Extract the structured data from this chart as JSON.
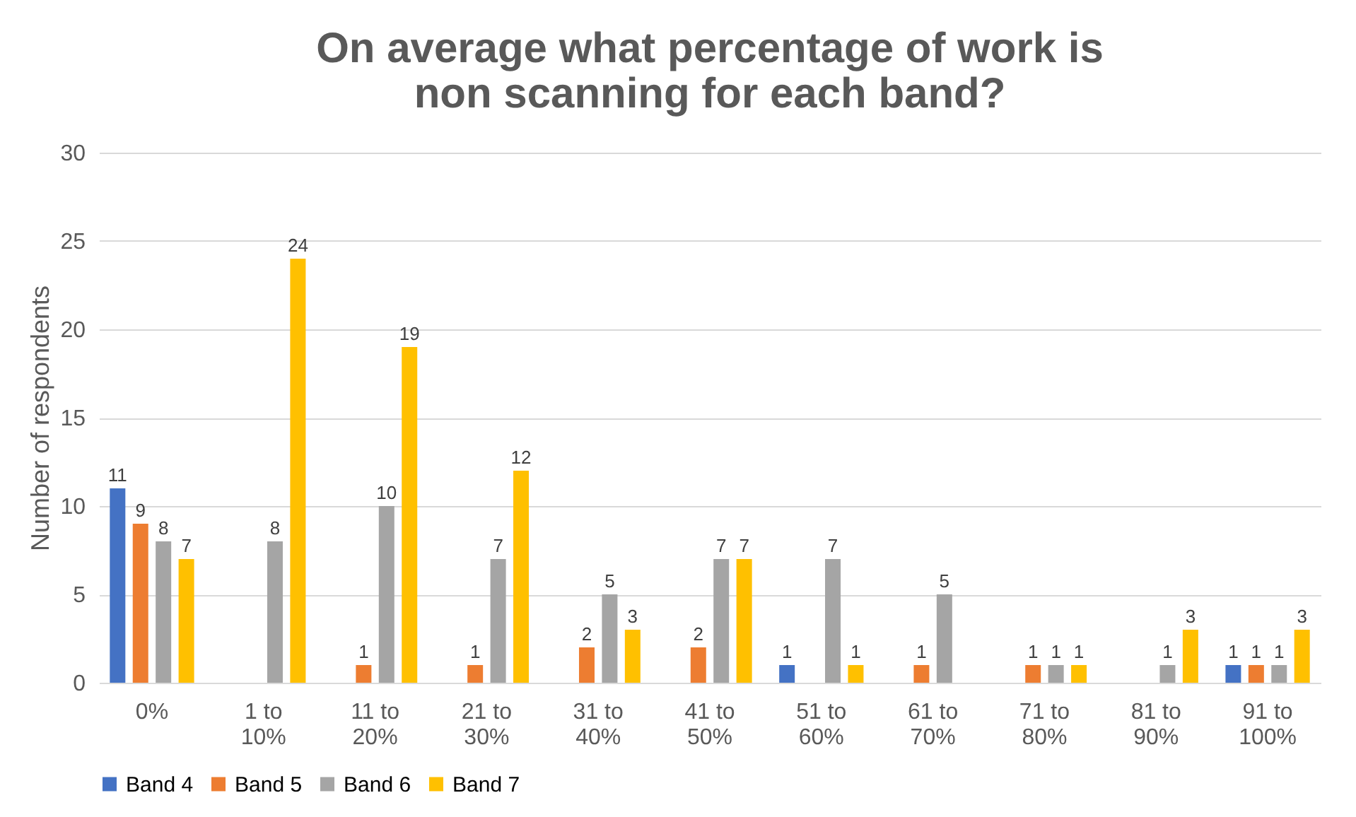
{
  "chart_data": {
    "type": "bar",
    "title": "On average what percentage of work is non scanning for each band?",
    "ylabel": "Number of respondents",
    "categories": [
      "0%",
      "1 to 10%",
      "11 to 20%",
      "21 to 30%",
      "31 to 40%",
      "41 to 50%",
      "51 to 60%",
      "61 to 70%",
      "71 to 80%",
      "81 to 90%",
      "91 to 100%"
    ],
    "series": [
      {
        "name": "Band 4",
        "color": "#4472c4",
        "values": [
          11,
          null,
          null,
          null,
          null,
          null,
          1,
          null,
          null,
          null,
          1
        ]
      },
      {
        "name": "Band 5",
        "color": "#ed7d31",
        "values": [
          9,
          null,
          1,
          1,
          2,
          2,
          null,
          1,
          1,
          null,
          1
        ]
      },
      {
        "name": "Band 6",
        "color": "#a5a5a5",
        "values": [
          8,
          8,
          10,
          7,
          5,
          7,
          7,
          5,
          1,
          1,
          1
        ]
      },
      {
        "name": "Band 7",
        "color": "#ffc000",
        "values": [
          7,
          24,
          19,
          12,
          3,
          7,
          1,
          null,
          1,
          3,
          3
        ]
      }
    ],
    "ylim": [
      0,
      30
    ],
    "yticks": [
      0,
      5,
      10,
      15,
      20,
      25,
      30
    ],
    "grid": "y",
    "legend": "bottom",
    "data_labels": true
  }
}
